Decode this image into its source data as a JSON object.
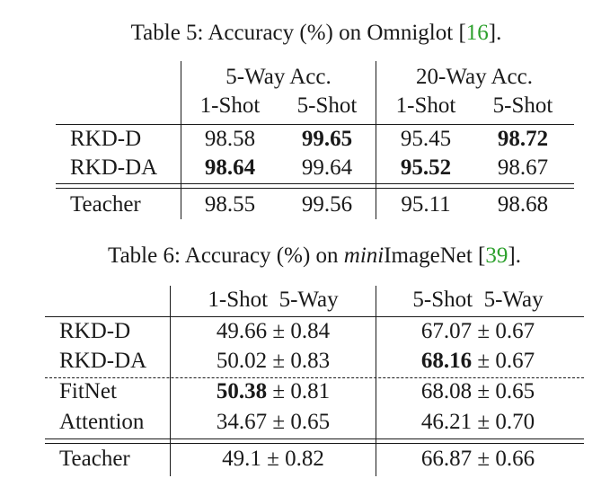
{
  "table5": {
    "caption_prefix": "Table 5: Accuracy (%) on Omniglot [",
    "caption_cite": "16",
    "caption_suffix": "].",
    "group_headers": [
      "5-Way Acc.",
      "20-Way Acc."
    ],
    "sub_headers": [
      "1-Shot",
      "5-Shot",
      "1-Shot",
      "5-Shot"
    ],
    "rows": [
      {
        "name": "RKD-D",
        "values": [
          "98.58",
          "99.65",
          "95.45",
          "98.72"
        ],
        "bold": [
          false,
          true,
          false,
          true
        ]
      },
      {
        "name": "RKD-DA",
        "values": [
          "98.64",
          "99.64",
          "95.52",
          "98.67"
        ],
        "bold": [
          true,
          false,
          true,
          false
        ]
      },
      {
        "name": "Teacher",
        "values": [
          "98.55",
          "99.56",
          "95.11",
          "98.68"
        ],
        "bold": [
          false,
          false,
          false,
          false
        ]
      }
    ]
  },
  "table6": {
    "caption_prefix": "Table 6: Accuracy (%) on ",
    "caption_italic": "mini",
    "caption_rest": "ImageNet [",
    "caption_cite": "39",
    "caption_suffix": "].",
    "headers": [
      "1-Shot  5-Way",
      "5-Shot  5-Way"
    ],
    "rows": [
      {
        "name": "RKD-D",
        "a": "49.66",
        "a_err": "± 0.84",
        "a_bold": false,
        "b": "67.07",
        "b_err": "± 0.67",
        "b_bold": false
      },
      {
        "name": "RKD-DA",
        "a": "50.02",
        "a_err": "± 0.83",
        "a_bold": false,
        "b": "68.16",
        "b_err": "± 0.67",
        "b_bold": true
      },
      {
        "name": "FitNet",
        "a": "50.38",
        "a_err": "± 0.81",
        "a_bold": true,
        "b": "68.08",
        "b_err": "± 0.65",
        "b_bold": false
      },
      {
        "name": "Attention",
        "a": "34.67",
        "a_err": "± 0.65",
        "a_bold": false,
        "b": "46.21",
        "b_err": "± 0.70",
        "b_bold": false
      },
      {
        "name": "Teacher",
        "a": "49.1",
        "a_err": "± 0.82",
        "a_bold": false,
        "b": "66.87",
        "b_err": "± 0.66",
        "b_bold": false
      }
    ]
  }
}
